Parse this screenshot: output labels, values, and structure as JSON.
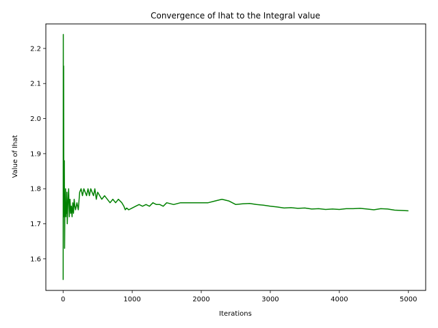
{
  "chart_data": {
    "type": "line",
    "title": "Convergence of Ihat to the Integral value",
    "xlabel": "Iterations",
    "ylabel": "Value of Ihat",
    "xlim": [
      -250,
      5250
    ],
    "ylim": [
      1.51,
      2.27
    ],
    "grid": false,
    "xticks": [
      0,
      1000,
      2000,
      3000,
      4000,
      5000
    ],
    "xtick_labels": [
      "0",
      "1000",
      "2000",
      "3000",
      "4000",
      "5000"
    ],
    "yticks": [
      1.6,
      1.7,
      1.8,
      1.9,
      2.0,
      2.1,
      2.2
    ],
    "ytick_labels": [
      "1.6",
      "1.7",
      "1.8",
      "1.9",
      "2.0",
      "2.1",
      "2.2"
    ],
    "series": [
      {
        "color": "#008000",
        "x": [
          1,
          3,
          5,
          8,
          10,
          14,
          18,
          22,
          26,
          30,
          35,
          40,
          45,
          50,
          55,
          60,
          70,
          80,
          90,
          100,
          110,
          120,
          130,
          140,
          150,
          160,
          170,
          180,
          200,
          220,
          240,
          260,
          280,
          300,
          320,
          340,
          360,
          380,
          400,
          420,
          440,
          460,
          480,
          500,
          530,
          560,
          600,
          640,
          680,
          720,
          760,
          800,
          850,
          880,
          900,
          920,
          950,
          1000,
          1050,
          1100,
          1150,
          1200,
          1250,
          1300,
          1350,
          1400,
          1450,
          1500,
          1600,
          1700,
          1800,
          1900,
          2000,
          2100,
          2200,
          2300,
          2400,
          2500,
          2600,
          2700,
          2800,
          2900,
          3000,
          3100,
          3200,
          3300,
          3400,
          3500,
          3600,
          3700,
          3800,
          3900,
          4000,
          4100,
          4200,
          4300,
          4400,
          4500,
          4600,
          4700,
          4800,
          4900,
          5000
        ],
        "y": [
          1.54,
          2.24,
          1.75,
          2.15,
          1.85,
          1.72,
          1.88,
          1.63,
          1.78,
          1.74,
          1.8,
          1.72,
          1.76,
          1.73,
          1.79,
          1.7,
          1.76,
          1.8,
          1.72,
          1.77,
          1.73,
          1.75,
          1.72,
          1.76,
          1.73,
          1.77,
          1.75,
          1.74,
          1.76,
          1.74,
          1.79,
          1.8,
          1.78,
          1.8,
          1.79,
          1.78,
          1.8,
          1.78,
          1.8,
          1.79,
          1.78,
          1.8,
          1.77,
          1.79,
          1.78,
          1.77,
          1.78,
          1.77,
          1.76,
          1.77,
          1.76,
          1.77,
          1.76,
          1.75,
          1.74,
          1.745,
          1.74,
          1.745,
          1.75,
          1.755,
          1.75,
          1.755,
          1.75,
          1.76,
          1.755,
          1.755,
          1.75,
          1.76,
          1.755,
          1.76,
          1.76,
          1.76,
          1.76,
          1.76,
          1.765,
          1.77,
          1.765,
          1.755,
          1.757,
          1.758,
          1.755,
          1.753,
          1.75,
          1.748,
          1.745,
          1.746,
          1.744,
          1.745,
          1.742,
          1.743,
          1.741,
          1.742,
          1.741,
          1.743,
          1.743,
          1.744,
          1.742,
          1.74,
          1.743,
          1.742,
          1.739,
          1.738,
          1.737
        ]
      }
    ]
  }
}
